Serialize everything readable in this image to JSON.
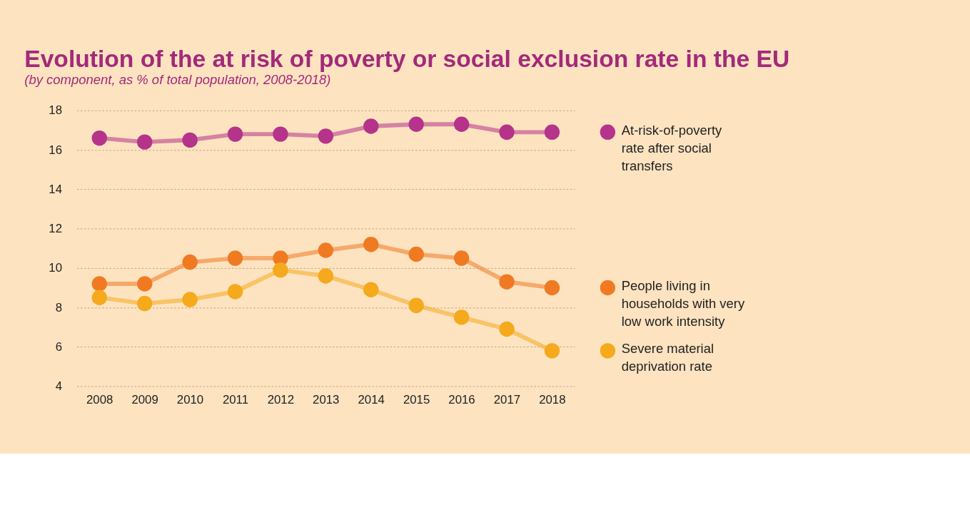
{
  "chart_data": {
    "type": "line",
    "title": "Evolution of the at risk of poverty or social exclusion rate in the EU",
    "subtitle": "(by component, as % of total population, 2008-2018)",
    "categories": [
      "2008",
      "2009",
      "2010",
      "2011",
      "2012",
      "2013",
      "2014",
      "2015",
      "2016",
      "2017",
      "2018"
    ],
    "series": [
      {
        "name": "At-risk-of-poverty rate after social transfers",
        "color": "#b5338a",
        "values": [
          16.6,
          16.4,
          16.5,
          16.8,
          16.8,
          16.7,
          17.2,
          17.3,
          17.3,
          16.9,
          16.9
        ]
      },
      {
        "name": "People living in households with very low work intensity",
        "color": "#f07a22",
        "values": [
          9.2,
          9.2,
          10.3,
          10.5,
          10.5,
          10.9,
          11.2,
          10.7,
          10.5,
          9.3,
          9.0
        ]
      },
      {
        "name": "Severe material deprivation rate",
        "color": "#f5a91c",
        "values": [
          8.5,
          8.2,
          8.4,
          8.8,
          9.9,
          9.6,
          8.9,
          8.1,
          7.5,
          6.9,
          5.8
        ]
      }
    ],
    "ylim": [
      4,
      18
    ],
    "yticks": [
      4,
      6,
      8,
      10,
      12,
      14,
      16,
      18
    ],
    "grid": "y",
    "legend": "right",
    "marker": "circle",
    "line_style": "solid"
  }
}
